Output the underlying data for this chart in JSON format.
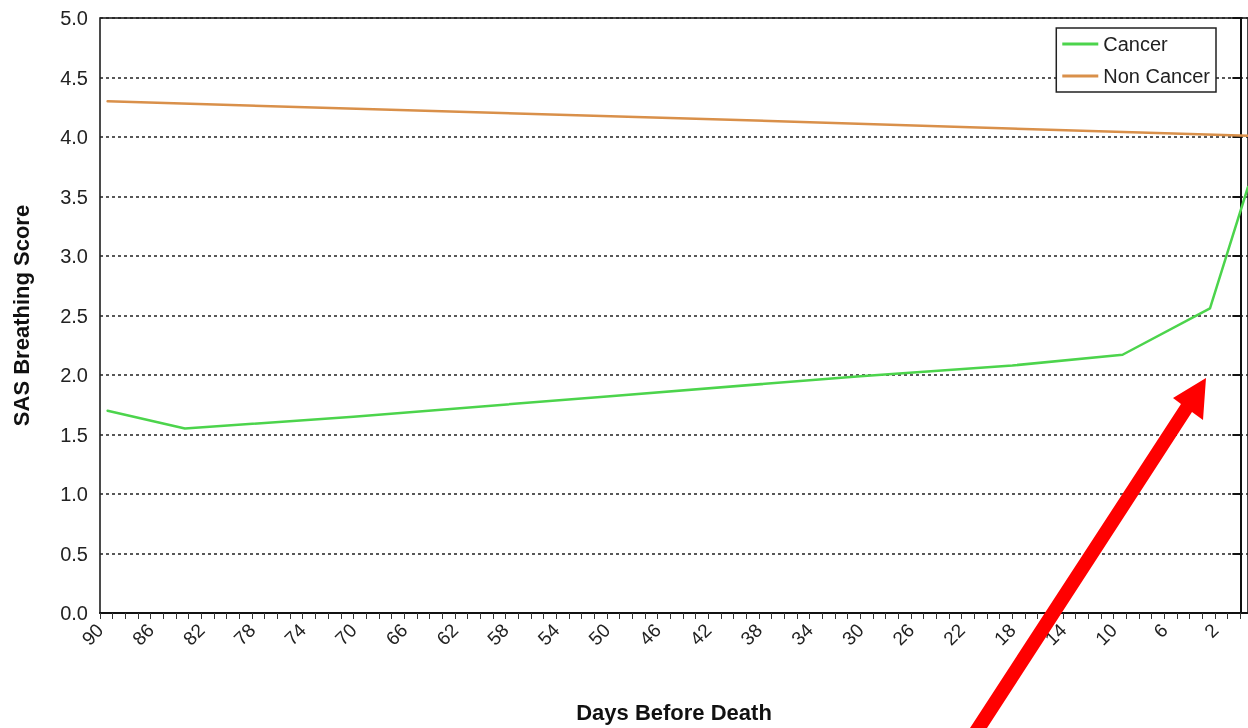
{
  "chart_data": {
    "type": "line",
    "xlabel": "Days Before Death",
    "ylabel": "SAS Breathing Score",
    "xlim": [
      90,
      -0.6
    ],
    "xticks": [
      90,
      {
        "value": 89,
        "label": null
      },
      {
        "value": 88,
        "label": null
      },
      {
        "value": 87,
        "label": null
      },
      86,
      {
        "value": 85,
        "label": null
      },
      {
        "value": 84,
        "label": null
      },
      {
        "value": 83,
        "label": null
      },
      82,
      {
        "value": 81,
        "label": null
      },
      {
        "value": 80,
        "label": null
      },
      {
        "value": 79,
        "label": null
      },
      78,
      {
        "value": 77,
        "label": null
      },
      {
        "value": 76,
        "label": null
      },
      {
        "value": 75,
        "label": null
      },
      74,
      {
        "value": 73,
        "label": null
      },
      {
        "value": 72,
        "label": null
      },
      {
        "value": 71,
        "label": null
      },
      70,
      {
        "value": 69,
        "label": null
      },
      {
        "value": 68,
        "label": null
      },
      {
        "value": 67,
        "label": null
      },
      66,
      {
        "value": 65,
        "label": null
      },
      {
        "value": 64,
        "label": null
      },
      {
        "value": 63,
        "label": null
      },
      62,
      {
        "value": 61,
        "label": null
      },
      {
        "value": 60,
        "label": null
      },
      {
        "value": 59,
        "label": null
      },
      58,
      {
        "value": 57,
        "label": null
      },
      {
        "value": 56,
        "label": null
      },
      {
        "value": 55,
        "label": null
      },
      54,
      {
        "value": 53,
        "label": null
      },
      {
        "value": 52,
        "label": null
      },
      {
        "value": 51,
        "label": null
      },
      50,
      {
        "value": 49,
        "label": null
      },
      {
        "value": 48,
        "label": null
      },
      {
        "value": 47,
        "label": null
      },
      46,
      {
        "value": 45,
        "label": null
      },
      {
        "value": 44,
        "label": null
      },
      {
        "value": 43,
        "label": null
      },
      42,
      {
        "value": 41,
        "label": null
      },
      {
        "value": 40,
        "label": null
      },
      {
        "value": 39,
        "label": null
      },
      38,
      {
        "value": 37,
        "label": null
      },
      {
        "value": 36,
        "label": null
      },
      {
        "value": 35,
        "label": null
      },
      34,
      {
        "value": 33,
        "label": null
      },
      {
        "value": 32,
        "label": null
      },
      {
        "value": 31,
        "label": null
      },
      30,
      {
        "value": 29,
        "label": null
      },
      {
        "value": 28,
        "label": null
      },
      {
        "value": 27,
        "label": null
      },
      26,
      {
        "value": 25,
        "label": null
      },
      {
        "value": 24,
        "label": null
      },
      {
        "value": 23,
        "label": null
      },
      22,
      {
        "value": 21,
        "label": null
      },
      {
        "value": 20,
        "label": null
      },
      {
        "value": 19,
        "label": null
      },
      18,
      {
        "value": 17,
        "label": null
      },
      {
        "value": 16,
        "label": null
      },
      {
        "value": 15,
        "label": null
      },
      14,
      {
        "value": 13,
        "label": null
      },
      {
        "value": 12,
        "label": null
      },
      {
        "value": 11,
        "label": null
      },
      10,
      {
        "value": 9,
        "label": null
      },
      {
        "value": 8,
        "label": null
      },
      {
        "value": 7,
        "label": null
      },
      6,
      {
        "value": 5,
        "label": null
      },
      {
        "value": 4,
        "label": null
      },
      {
        "value": 3,
        "label": null
      },
      2,
      {
        "value": 1,
        "label": null
      },
      {
        "value": 0,
        "label": null
      }
    ],
    "ylim": [
      0,
      5
    ],
    "yticks": [
      {
        "value": 0,
        "label": "0.0"
      },
      0.5,
      {
        "value": 1,
        "label": "1.0"
      },
      1.5,
      {
        "value": 2,
        "label": "2.0"
      },
      2.5,
      {
        "value": 3,
        "label": "3.0"
      },
      3.5,
      {
        "value": 4,
        "label": "4.0"
      },
      4.5,
      {
        "value": 5,
        "label": "5.0"
      }
    ],
    "grid": "y",
    "legend": "top right",
    "marker": "none",
    "line_style": "solid",
    "series": [
      {
        "name": "Cancer",
        "color": "#4cd44c",
        "x": [
          89.4,
          83.3,
          70,
          50,
          30,
          18,
          9.3,
          2.4,
          -0.6
        ],
        "values": [
          1.7,
          1.55,
          1.65,
          1.82,
          1.99,
          2.08,
          2.17,
          2.56,
          3.58
        ]
      },
      {
        "name": "Non Cancer",
        "color": "#d9904a",
        "x": [
          89.4,
          45,
          -0.6
        ],
        "values": [
          4.3,
          4.16,
          4.01
        ]
      }
    ]
  }
}
